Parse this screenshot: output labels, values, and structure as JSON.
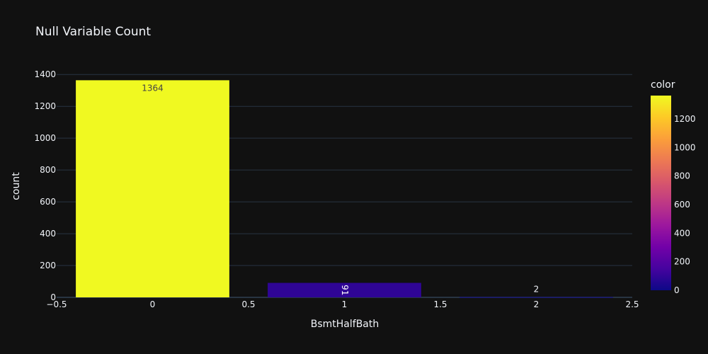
{
  "chart_data": {
    "type": "bar",
    "title": "Null Variable Count",
    "xlabel": "BsmtHalfBath",
    "ylabel": "count",
    "x": [
      0,
      1,
      2
    ],
    "values": [
      1364,
      91,
      2
    ],
    "data_labels": [
      "1364",
      "91",
      "2"
    ],
    "xlim": [
      -0.5,
      2.5
    ],
    "ylim": [
      0,
      1410
    ],
    "x_ticks": [
      -0.5,
      0,
      0.5,
      1,
      1.5,
      2,
      2.5
    ],
    "x_tick_labels": [
      "−0.5",
      "0",
      "0.5",
      "1",
      "1.5",
      "2",
      "2.5"
    ],
    "y_ticks": [
      0,
      200,
      400,
      600,
      800,
      1000,
      1200,
      1400
    ],
    "y_tick_labels": [
      "0",
      "200",
      "400",
      "600",
      "800",
      "1000",
      "1200",
      "1400"
    ],
    "grid": true,
    "colorbar": {
      "title": "color",
      "range": [
        0,
        1364
      ],
      "ticks": [
        0,
        200,
        400,
        600,
        800,
        1000,
        1200
      ],
      "tick_labels": [
        "0",
        "200",
        "400",
        "600",
        "800",
        "1000",
        "1200"
      ],
      "colorscale": [
        "#0d0887",
        "#46039f",
        "#7201a8",
        "#9c179e",
        "#bd3786",
        "#d8576b",
        "#ed7953",
        "#fb9f3a",
        "#fdca26",
        "#f0f921"
      ]
    },
    "colors": {
      "background": "#111111",
      "grid": "#283442",
      "text": "#f2f5fa"
    }
  }
}
